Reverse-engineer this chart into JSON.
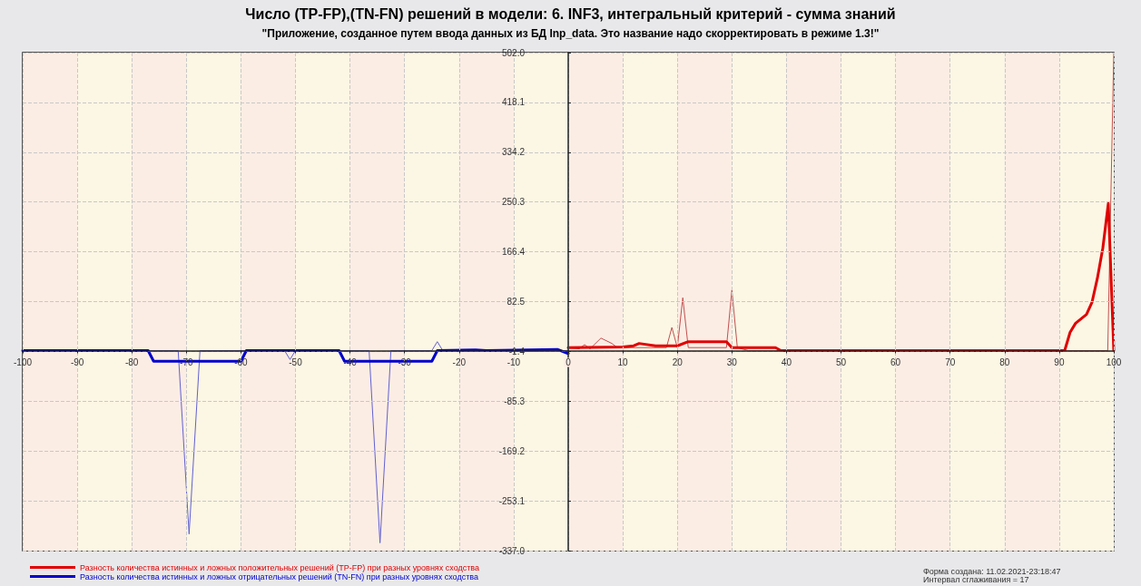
{
  "chart_data": {
    "type": "line",
    "title": "Число (TP-FP),(TN-FN) решений в модели: 6. INF3, интегральный критерий - сумма знаний",
    "subtitle": "\"Приложение, созданное путем ввода данных из БД Inp_data. Это название надо скорректировать в режиме 1.3!\"",
    "annotations": [
      "Форма создана: 11.02.2021-23:18:47",
      "Интервал сглаживания = 17"
    ],
    "xlim": [
      -100,
      100
    ],
    "xticks": [
      -100,
      -90,
      -80,
      -70,
      -60,
      -50,
      -40,
      -30,
      -20,
      -10,
      0,
      10,
      20,
      30,
      40,
      50,
      60,
      70,
      80,
      90,
      100
    ],
    "ylim": [
      -337.0,
      502.0
    ],
    "yticks": [
      {
        "value": -337.0,
        "label": "-337.0"
      },
      {
        "value": -253.1,
        "label": "-253.1"
      },
      {
        "value": -169.2,
        "label": "-169.2"
      },
      {
        "value": -85.3,
        "label": "-85.3"
      },
      {
        "value": -1.4,
        "label": "-1.4"
      },
      {
        "value": 82.5,
        "label": "82.5"
      },
      {
        "value": 166.4,
        "label": "166.4"
      },
      {
        "value": 250.3,
        "label": "250.3"
      },
      {
        "value": 334.2,
        "label": "334.2"
      },
      {
        "value": 418.1,
        "label": "418.1"
      },
      {
        "value": 502.0,
        "label": "502.0"
      }
    ],
    "grid": true,
    "legend": "bottom left",
    "marker": "none",
    "line_style": "solid",
    "bands": [
      {
        "axis": "x",
        "from": -100,
        "to": -90,
        "color": "#fcede4"
      },
      {
        "axis": "x",
        "from": -90,
        "to": -80,
        "color": "#fcf6e4"
      },
      {
        "axis": "x",
        "from": -80,
        "to": -70,
        "color": "#fcede4"
      },
      {
        "axis": "x",
        "from": -70,
        "to": -60,
        "color": "#fcf6e4"
      },
      {
        "axis": "x",
        "from": -60,
        "to": -50,
        "color": "#fcede4"
      },
      {
        "axis": "x",
        "from": -50,
        "to": -40,
        "color": "#fcf6e4"
      },
      {
        "axis": "x",
        "from": -40,
        "to": -30,
        "color": "#fcede4"
      },
      {
        "axis": "x",
        "from": -30,
        "to": -20,
        "color": "#fcf6e4"
      },
      {
        "axis": "x",
        "from": -20,
        "to": -10,
        "color": "#fcede4"
      },
      {
        "axis": "x",
        "from": -10,
        "to": 0,
        "color": "#fcf6e4"
      },
      {
        "axis": "x",
        "from": 0,
        "to": 10,
        "color": "#fcede4"
      },
      {
        "axis": "x",
        "from": 10,
        "to": 20,
        "color": "#fcf6e4"
      },
      {
        "axis": "x",
        "from": 20,
        "to": 30,
        "color": "#fcede4"
      },
      {
        "axis": "x",
        "from": 30,
        "to": 40,
        "color": "#fcf6e4"
      },
      {
        "axis": "x",
        "from": 40,
        "to": 50,
        "color": "#fcede4"
      },
      {
        "axis": "x",
        "from": 50,
        "to": 60,
        "color": "#fcf6e4"
      },
      {
        "axis": "x",
        "from": 60,
        "to": 70,
        "color": "#fcede4"
      },
      {
        "axis": "x",
        "from": 70,
        "to": 80,
        "color": "#fcf6e4"
      },
      {
        "axis": "x",
        "from": 80,
        "to": 90,
        "color": "#fcede4"
      },
      {
        "axis": "x",
        "from": 90,
        "to": 100,
        "color": "#fcf6e4"
      }
    ],
    "series": [
      {
        "color": "#c05050",
        "x": [
          0,
          2,
          3,
          4,
          6,
          8,
          9,
          18,
          19,
          20,
          21,
          22,
          29,
          30,
          31,
          33,
          98.9,
          100
        ],
        "values": [
          5,
          3,
          10,
          3,
          21,
          12,
          5,
          5,
          39,
          5,
          89,
          5,
          5,
          102,
          5,
          0,
          0,
          502
        ]
      },
      {
        "name": "Разность количества истинных и ложных положительных решений (TP-FP) при разных уровнях сходства",
        "color": "#e00000",
        "x": [
          0,
          10,
          12,
          13,
          16,
          20,
          22,
          29,
          30,
          38,
          39,
          91,
          92,
          93,
          95,
          96,
          97,
          98,
          99,
          100
        ],
        "values": [
          5,
          6,
          8,
          12,
          8,
          8,
          15,
          15,
          5,
          5,
          0,
          0,
          31,
          46,
          61,
          81,
          122,
          173,
          248,
          0
        ]
      },
      {
        "color": "#6060d0",
        "x": [
          -100,
          -71.5,
          -69.5,
          -67.5,
          -52,
          -51,
          -50,
          -36.5,
          -34.5,
          -32.5,
          -25,
          -24,
          -23,
          0
        ],
        "values": [
          0,
          0,
          -309,
          0,
          0,
          -15,
          0,
          0,
          -324,
          0,
          0,
          15,
          0,
          0
        ]
      },
      {
        "name": "Разность количества истинных и ложных отрицательных решений (TN-FN) при разных уровнях сходства",
        "color": "#0000cc",
        "x": [
          -100,
          -77,
          -76,
          -60,
          -59,
          -42,
          -41,
          -25,
          -24,
          -17,
          -15,
          -2,
          0
        ],
        "values": [
          0,
          0,
          -18,
          -18,
          0,
          0,
          -18,
          -18,
          0,
          1,
          0,
          2,
          -5
        ]
      }
    ]
  }
}
